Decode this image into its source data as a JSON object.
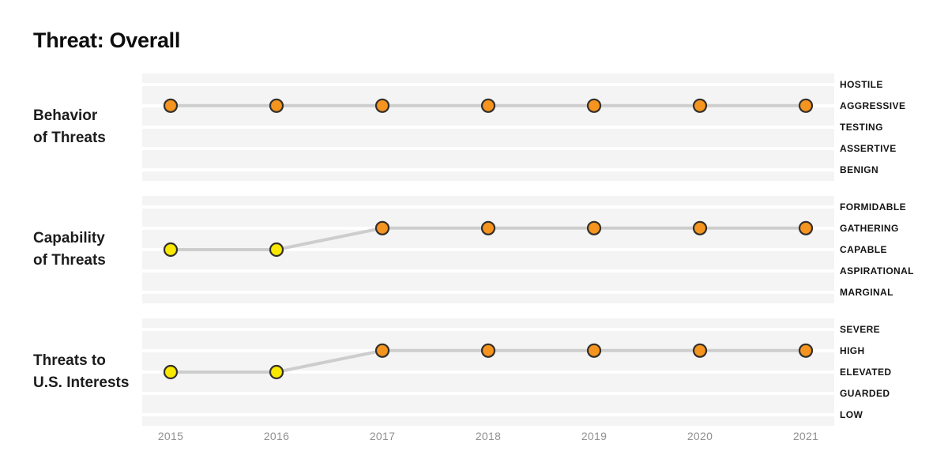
{
  "title": "Threat: Overall",
  "colors": {
    "orange": "#F5941F",
    "yellow": "#F9E800",
    "point_border": "#33302B",
    "trend_line": "#CDCDCD",
    "band_bg": "#F4F4F4",
    "gridline": "#FFFFFF",
    "year_label": "#909090",
    "text": "#141414"
  },
  "chart_data": {
    "type": "line",
    "title": "Threat: Overall",
    "x": [
      "2015",
      "2016",
      "2017",
      "2018",
      "2019",
      "2020",
      "2021"
    ],
    "xlabel": "",
    "ylabel": "",
    "grid": "horizontal white gridlines on light-gray band, one line per ordinal level",
    "legend_position": "level labels along right edge of each panel",
    "y_scale": "ordinal, 5 levels per panel, highest severity at top",
    "panels": [
      {
        "name": "Behavior of Threats",
        "label_lines": [
          "Behavior",
          "of Threats"
        ],
        "levels": [
          "HOSTILE",
          "AGGRESSIVE",
          "TESTING",
          "ASSERTIVE",
          "BENIGN"
        ],
        "values": [
          "AGGRESSIVE",
          "AGGRESSIVE",
          "AGGRESSIVE",
          "AGGRESSIVE",
          "AGGRESSIVE",
          "AGGRESSIVE",
          "AGGRESSIVE"
        ],
        "point_colors": [
          "orange",
          "orange",
          "orange",
          "orange",
          "orange",
          "orange",
          "orange"
        ]
      },
      {
        "name": "Capability of Threats",
        "label_lines": [
          "Capability",
          "of Threats"
        ],
        "levels": [
          "FORMIDABLE",
          "GATHERING",
          "CAPABLE",
          "ASPIRATIONAL",
          "MARGINAL"
        ],
        "values": [
          "CAPABLE",
          "CAPABLE",
          "GATHERING",
          "GATHERING",
          "GATHERING",
          "GATHERING",
          "GATHERING"
        ],
        "point_colors": [
          "yellow",
          "yellow",
          "orange",
          "orange",
          "orange",
          "orange",
          "orange"
        ]
      },
      {
        "name": "Threats to U.S. Interests",
        "label_lines": [
          "Threats to",
          "U.S. Interests"
        ],
        "levels": [
          "SEVERE",
          "HIGH",
          "ELEVATED",
          "GUARDED",
          "LOW"
        ],
        "values": [
          "ELEVATED",
          "ELEVATED",
          "HIGH",
          "HIGH",
          "HIGH",
          "HIGH",
          "HIGH"
        ],
        "point_colors": [
          "yellow",
          "yellow",
          "orange",
          "orange",
          "orange",
          "orange",
          "orange"
        ]
      }
    ]
  }
}
